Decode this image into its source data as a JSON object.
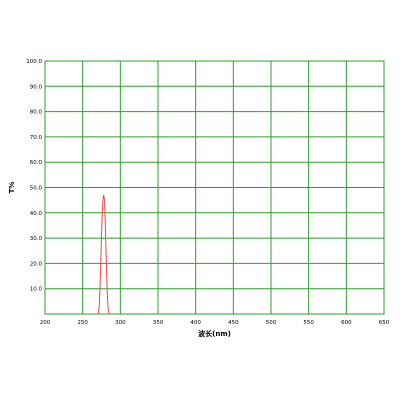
{
  "chart_data": {
    "type": "line",
    "xlabel": "波长(nm)",
    "ylabel": "T%",
    "xlim": [
      200,
      650
    ],
    "ylim": [
      0,
      100
    ],
    "x_ticks": [
      200,
      250,
      300,
      350,
      400,
      450,
      500,
      550,
      600,
      650
    ],
    "y_ticks": [
      10,
      20,
      30,
      40,
      50,
      60,
      70,
      80,
      90,
      100
    ],
    "y_tick_labels": [
      "10.0",
      "20.0",
      "30.0",
      "40.0",
      "50.0",
      "60.0",
      "70.0",
      "80.0",
      "90.0",
      "100.0"
    ],
    "grid": true,
    "grid_color": "#2e9e2e",
    "series": [
      {
        "color": "#e84a4a",
        "points": [
          [
            271,
            0
          ],
          [
            272,
            3
          ],
          [
            273,
            10
          ],
          [
            274,
            20
          ],
          [
            275,
            31
          ],
          [
            276,
            40
          ],
          [
            277,
            45.5
          ],
          [
            278,
            47
          ],
          [
            279,
            45
          ],
          [
            280,
            36
          ],
          [
            281,
            25
          ],
          [
            282,
            14
          ],
          [
            283,
            6
          ],
          [
            284,
            1.5
          ],
          [
            285,
            0
          ]
        ]
      }
    ]
  }
}
